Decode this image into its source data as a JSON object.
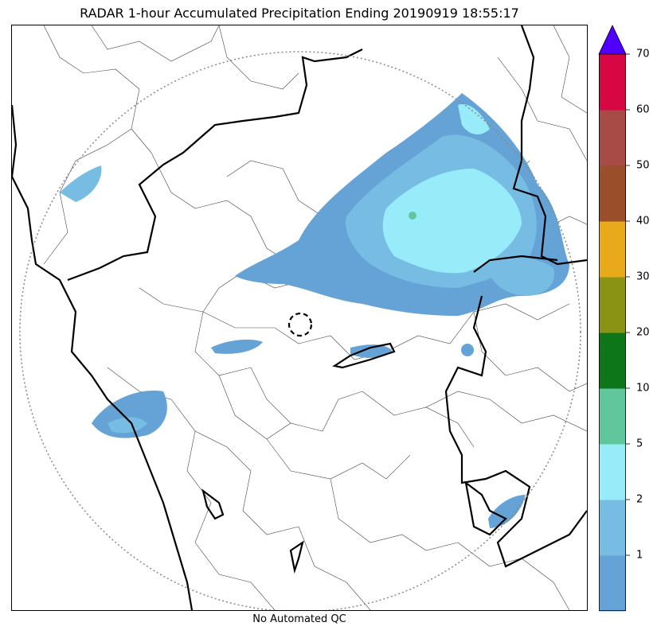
{
  "title": "RADAR 1-hour Accumulated Precipitation Ending 20190919 18:55:17",
  "footer": "No Automated QC",
  "colorbar": {
    "labels": [
      "1",
      "2",
      "5",
      "10",
      "20",
      "30",
      "40",
      "50",
      "60",
      "70"
    ],
    "colors": [
      "#65a3d6",
      "#77bde3",
      "#98ecfa",
      "#5fc79b",
      "#0d7619",
      "#8b9314",
      "#e8a91b",
      "#9a4e2a",
      "#a84a46",
      "#d70744"
    ],
    "over_color": "#5000ff"
  },
  "map": {
    "coverage_ring": "dotted",
    "radar_site": "dashed-circle"
  }
}
